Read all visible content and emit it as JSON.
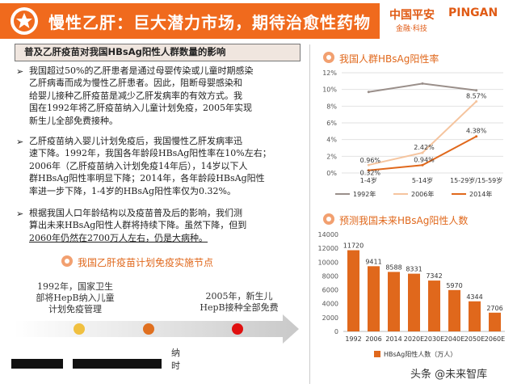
{
  "header": {
    "title": "慢性乙肝：巨大潜力市场，期待治愈性药物",
    "brand_cn": "中国平安",
    "brand_en": "PINGAN",
    "brand_sub": "金融·科技",
    "colors": {
      "accent": "#f06a1d",
      "brand": "#e05a14"
    }
  },
  "left": {
    "title": "普及乙肝疫苗对我国HBsAg阳性人群数量的影响",
    "bullets": [
      {
        "lines": [
          "我国超过50%的乙肝患者是通过母婴传染或儿童时期感染",
          "乙肝病毒而成为慢性乙肝患者。因此，阻断母婴感染和",
          "给婴儿接种乙肝疫苗是减少乙肝发病率的有效方式。我",
          "国在1992年将乙肝疫苗纳入儿童计划免疫，2005年实现",
          "新生儿全部免费接种。"
        ]
      },
      {
        "lines": [
          "乙肝疫苗纳入婴儿计划免疫后，我国慢性乙肝发病率迅",
          "速下降。1992年，我国各年龄段HBsAg阳性率在10%左右；",
          "2006年（乙肝疫苗纳入计划免疫14年后），14岁以下人",
          "群HBsAg阳性率明显下降；2014年，各年龄段HBsAg阳性",
          "率进一步下降，1-4岁的HBsAg阳性率仅为0.32%。"
        ]
      },
      {
        "lines": [
          "根据我国人口年龄结构以及疫苗普及后的影响，我们测",
          "算出未来HBsAg阳性人群将持续下降。虽然下降，但到",
          "2060年仍然在2700万人左右，仍是大病种。"
        ]
      }
    ],
    "timeline": {
      "title": "我国乙肝疫苗计划免疫实施节点",
      "event1": [
        "1992年，国家卫生",
        "部将HepB纳入儿童",
        "计划免疫管理"
      ],
      "event2": [
        "2005年，新生儿",
        "HepB接种全部免费"
      ],
      "dot_colors": [
        "#f0c040",
        "#e07020",
        "#e01010"
      ]
    },
    "footer_partial": [
      "纳",
      "时"
    ]
  },
  "right": {
    "chart1_title": "我国人群HBsAg阳性率",
    "chart2_title": "预测我国未来HBsAg阳性人数",
    "watermark": "头条 @未来智库"
  },
  "chart_data": [
    {
      "type": "line",
      "title": "我国人群HBsAg阳性率",
      "categories": [
        "1-4岁",
        "5-14岁",
        "15-29岁/15-59岁"
      ],
      "ylim": [
        0,
        12
      ],
      "yticks": [
        "0%",
        "2%",
        "4%",
        "6%",
        "8%",
        "10%",
        "12%"
      ],
      "series": [
        {
          "name": "1992年",
          "values": [
            9.7,
            10.7,
            9.9
          ],
          "color": "#9a8f8a",
          "labels": [
            "",
            "",
            ""
          ]
        },
        {
          "name": "2006年",
          "values": [
            0.96,
            2.42,
            8.57
          ],
          "color": "#f5c49e",
          "labels": [
            "0.96%",
            "2.42%",
            "8.57%"
          ]
        },
        {
          "name": "2014年",
          "values": [
            0.32,
            0.94,
            4.38
          ],
          "color": "#e0681c",
          "labels": [
            "0.32%",
            "0.94%",
            "4.38%"
          ]
        }
      ],
      "legend": "bottom",
      "grid": true
    },
    {
      "type": "bar",
      "title": "预测我国未来HBsAg阳性人数",
      "categories": [
        "1992",
        "2006",
        "2014",
        "2020E",
        "2030E",
        "2040E",
        "2050E",
        "2060E"
      ],
      "values": [
        11720,
        9411,
        8588,
        8331,
        7342,
        5970,
        4344,
        2706
      ],
      "ylim": [
        0,
        14000
      ],
      "yticks": [
        "0",
        "2000",
        "4000",
        "6000",
        "8000",
        "10000",
        "12000",
        "14000"
      ],
      "series_name": "HBsAg阳性人数（万人）",
      "color": "#e0681c",
      "legend": "bottom",
      "grid": false
    }
  ]
}
